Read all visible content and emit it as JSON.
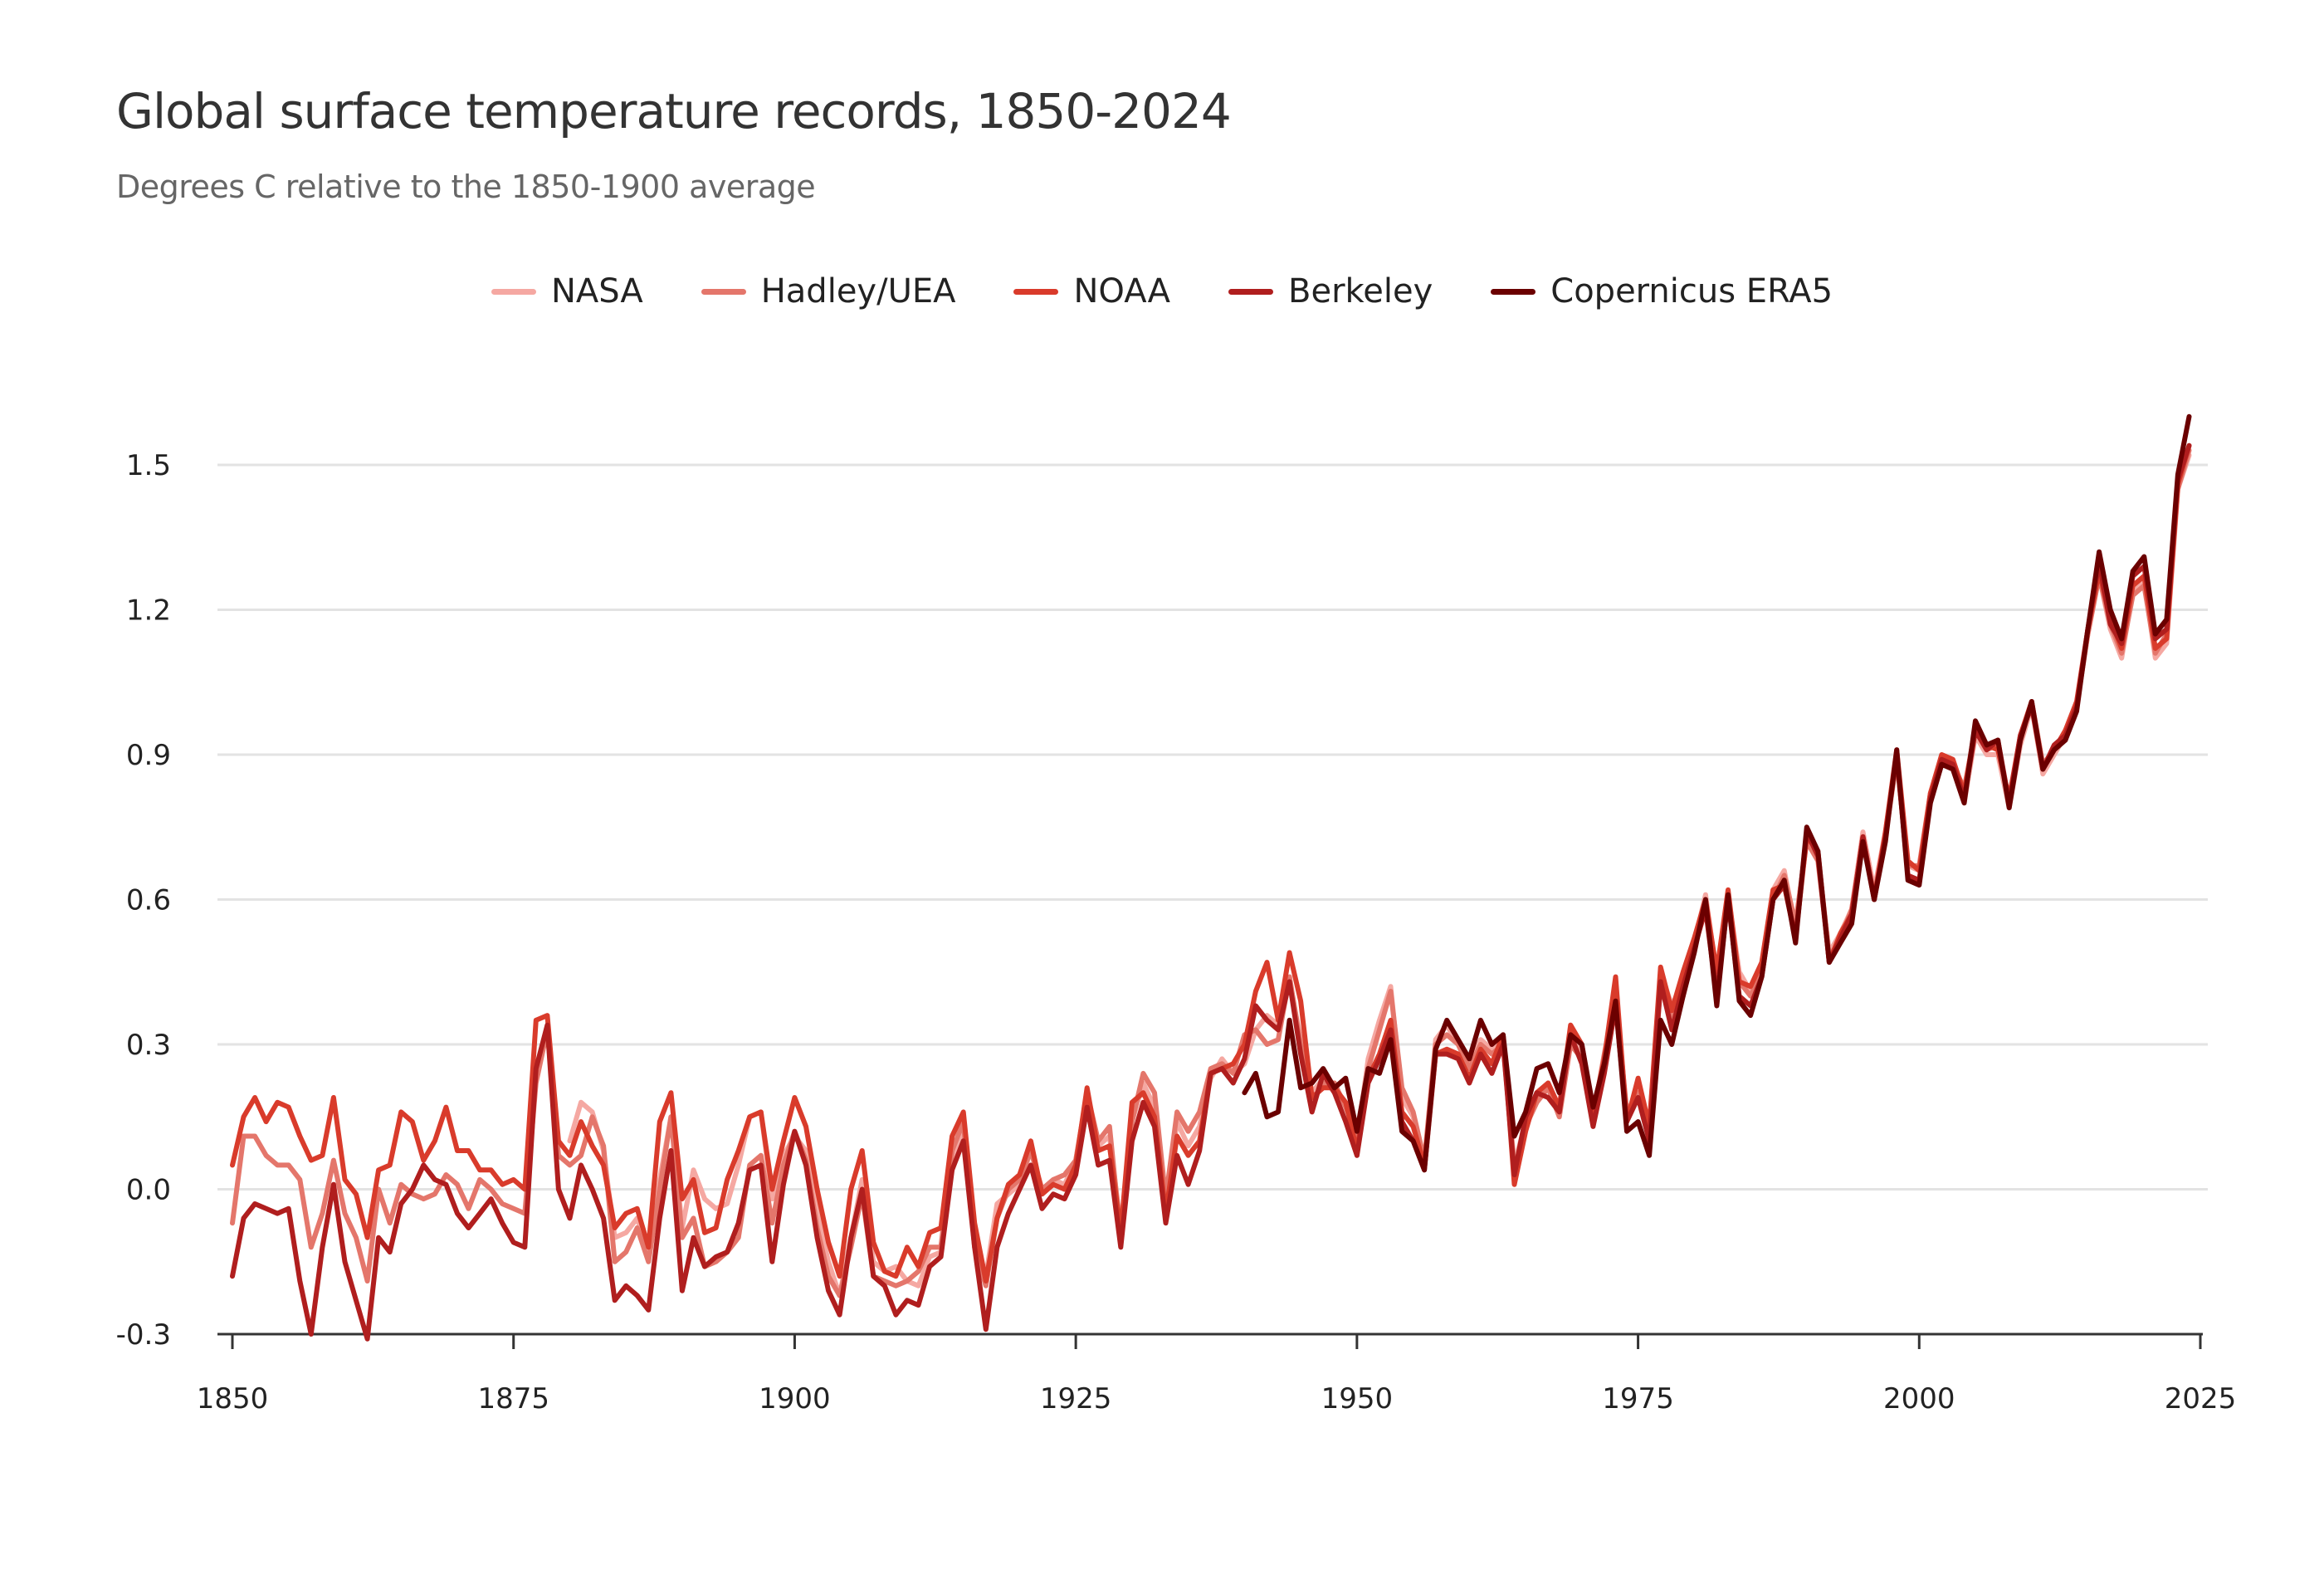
{
  "chart_data": {
    "type": "line",
    "title": "Global surface temperature records, 1850-2024",
    "subtitle": "Degrees C relative to the 1850-1900 average",
    "xlabel": "",
    "ylabel": "",
    "xlim": [
      1850,
      2025
    ],
    "ylim": [
      -0.3,
      1.5
    ],
    "x_ticks": [
      "1850",
      "1875",
      "1900",
      "1925",
      "1950",
      "1975",
      "2000",
      "2025"
    ],
    "y_ticks": [
      "-0.3",
      "0.0",
      "0.3",
      "0.6",
      "0.9",
      "1.2",
      "1.5"
    ],
    "grid": true,
    "legend_position": "top-center",
    "series": [
      {
        "name": "NASA",
        "color": "#f5a8a2",
        "start": 1880,
        "values": [
          0.1,
          0.18,
          0.16,
          0.08,
          -0.1,
          -0.09,
          -0.06,
          -0.13,
          0.02,
          0.15,
          -0.08,
          0.04,
          -0.02,
          -0.04,
          -0.03,
          0.05,
          0.15,
          0.16,
          -0.02,
          0.07,
          0.11,
          0.08,
          -0.05,
          -0.15,
          -0.22,
          -0.1,
          0.02,
          -0.15,
          -0.17,
          -0.16,
          -0.19,
          -0.2,
          -0.14,
          -0.13,
          0.06,
          0.12,
          -0.1,
          -0.18,
          -0.03,
          -0.01,
          0.01,
          0.08,
          0.0,
          0.02,
          0.01,
          0.06,
          0.19,
          0.09,
          0.11,
          -0.08,
          0.14,
          0.22,
          0.17,
          -0.03,
          0.14,
          0.09,
          0.13,
          0.23,
          0.27,
          0.24,
          0.26,
          0.33,
          0.36,
          0.34,
          0.43,
          0.31,
          0.2,
          0.23,
          0.2,
          0.18,
          0.1,
          0.27,
          0.35,
          0.42,
          0.19,
          0.15,
          0.05,
          0.31,
          0.34,
          0.3,
          0.26,
          0.31,
          0.29,
          0.31,
          0.05,
          0.14,
          0.2,
          0.22,
          0.16,
          0.32,
          0.28,
          0.17,
          0.26,
          0.41,
          0.15,
          0.21,
          0.13,
          0.45,
          0.38,
          0.43,
          0.51,
          0.61,
          0.44,
          0.61,
          0.45,
          0.41,
          0.46,
          0.62,
          0.66,
          0.54,
          0.73,
          0.69,
          0.49,
          0.53,
          0.58,
          0.74,
          0.62,
          0.74,
          0.9,
          0.67,
          0.66,
          0.81,
          0.88,
          0.87,
          0.8,
          0.94,
          0.9,
          0.9,
          0.79,
          0.92,
          1.0,
          0.86,
          0.9,
          0.94,
          1.0,
          1.15,
          1.27,
          1.16,
          1.1,
          1.24,
          1.26,
          1.1,
          1.13,
          1.45,
          1.52
        ]
      },
      {
        "name": "Hadley/UEA",
        "color": "#e4766b",
        "start": 1850,
        "values": [
          -0.07,
          0.11,
          0.11,
          0.07,
          0.05,
          0.05,
          0.02,
          -0.12,
          -0.05,
          0.06,
          -0.05,
          -0.1,
          -0.19,
          0.0,
          -0.07,
          0.01,
          -0.01,
          -0.02,
          -0.01,
          0.03,
          0.01,
          -0.04,
          0.02,
          0.0,
          -0.03,
          -0.04,
          -0.05,
          0.22,
          0.33,
          0.07,
          0.05,
          0.07,
          0.15,
          0.09,
          -0.15,
          -0.13,
          -0.08,
          -0.15,
          0.0,
          0.15,
          -0.1,
          -0.06,
          -0.16,
          -0.15,
          -0.13,
          -0.1,
          0.05,
          0.07,
          -0.07,
          0.05,
          0.12,
          0.06,
          -0.08,
          -0.18,
          -0.22,
          -0.12,
          -0.01,
          -0.18,
          -0.19,
          -0.2,
          -0.19,
          -0.17,
          -0.12,
          -0.12,
          0.08,
          0.14,
          -0.12,
          -0.2,
          -0.06,
          0.0,
          0.02,
          0.08,
          0.0,
          0.02,
          0.03,
          0.06,
          0.2,
          0.1,
          0.13,
          -0.1,
          0.14,
          0.24,
          0.2,
          -0.02,
          0.16,
          0.12,
          0.16,
          0.25,
          0.26,
          0.24,
          0.32,
          0.33,
          0.3,
          0.31,
          0.44,
          0.3,
          0.18,
          0.22,
          0.22,
          0.17,
          0.11,
          0.25,
          0.33,
          0.41,
          0.21,
          0.16,
          0.06,
          0.3,
          0.32,
          0.3,
          0.25,
          0.3,
          0.28,
          0.3,
          0.04,
          0.13,
          0.18,
          0.21,
          0.15,
          0.3,
          0.27,
          0.15,
          0.28,
          0.4,
          0.16,
          0.2,
          0.12,
          0.42,
          0.35,
          0.4,
          0.5,
          0.58,
          0.42,
          0.6,
          0.43,
          0.4,
          0.45,
          0.6,
          0.65,
          0.55,
          0.72,
          0.68,
          0.48,
          0.52,
          0.58,
          0.72,
          0.61,
          0.73,
          0.89,
          0.67,
          0.67,
          0.82,
          0.89,
          0.88,
          0.83,
          0.95,
          0.91,
          0.92,
          0.8,
          0.93,
          1.01,
          0.88,
          0.91,
          0.95,
          1.0,
          1.15,
          1.27,
          1.17,
          1.11,
          1.23,
          1.25,
          1.11,
          1.15,
          1.45,
          1.53
        ]
      },
      {
        "name": "NOAA",
        "color": "#d93b2b",
        "start": 1850,
        "values": [
          0.05,
          0.15,
          0.19,
          0.14,
          0.18,
          0.17,
          0.11,
          0.06,
          0.07,
          0.19,
          0.02,
          -0.01,
          -0.1,
          0.04,
          0.05,
          0.16,
          0.14,
          0.06,
          0.1,
          0.17,
          0.08,
          0.08,
          0.04,
          0.04,
          0.01,
          0.02,
          0.0,
          0.35,
          0.36,
          0.1,
          0.07,
          0.14,
          0.09,
          0.05,
          -0.08,
          -0.05,
          -0.04,
          -0.12,
          0.14,
          0.2,
          -0.02,
          0.02,
          -0.09,
          -0.08,
          0.02,
          0.08,
          0.15,
          0.16,
          0.0,
          0.1,
          0.19,
          0.13,
          0.0,
          -0.11,
          -0.18,
          0.0,
          0.08,
          -0.11,
          -0.17,
          -0.18,
          -0.12,
          -0.16,
          -0.09,
          -0.08,
          0.11,
          0.16,
          -0.07,
          -0.19,
          -0.06,
          0.01,
          0.03,
          0.1,
          -0.01,
          0.01,
          0.0,
          0.05,
          0.21,
          0.08,
          0.09,
          -0.09,
          0.18,
          0.2,
          0.15,
          -0.05,
          0.11,
          0.07,
          0.1,
          0.24,
          0.25,
          0.26,
          0.3,
          0.41,
          0.47,
          0.35,
          0.49,
          0.39,
          0.19,
          0.21,
          0.21,
          0.18,
          0.08,
          0.23,
          0.28,
          0.35,
          0.16,
          0.13,
          0.05,
          0.28,
          0.29,
          0.28,
          0.23,
          0.29,
          0.26,
          0.32,
          0.01,
          0.12,
          0.2,
          0.22,
          0.17,
          0.34,
          0.3,
          0.16,
          0.27,
          0.44,
          0.14,
          0.23,
          0.13,
          0.46,
          0.37,
          0.45,
          0.52,
          0.6,
          0.45,
          0.62,
          0.43,
          0.42,
          0.47,
          0.62,
          0.63,
          0.52,
          0.73,
          0.7,
          0.47,
          0.53,
          0.57,
          0.73,
          0.6,
          0.74,
          0.91,
          0.68,
          0.66,
          0.82,
          0.9,
          0.89,
          0.82,
          0.96,
          0.92,
          0.91,
          0.81,
          0.94,
          1.01,
          0.87,
          0.91,
          0.95,
          1.01,
          1.16,
          1.28,
          1.18,
          1.12,
          1.25,
          1.27,
          1.12,
          1.14,
          1.46,
          1.54
        ]
      },
      {
        "name": "Berkeley",
        "color": "#b01e1e",
        "start": 1850,
        "values": [
          -0.18,
          -0.06,
          -0.03,
          -0.04,
          -0.05,
          -0.04,
          -0.19,
          -0.3,
          -0.12,
          0.01,
          -0.15,
          -0.23,
          -0.31,
          -0.1,
          -0.13,
          -0.03,
          0.0,
          0.05,
          0.02,
          0.01,
          -0.05,
          -0.08,
          -0.05,
          -0.02,
          -0.07,
          -0.11,
          -0.12,
          0.25,
          0.34,
          0.0,
          -0.06,
          0.05,
          0.0,
          -0.06,
          -0.23,
          -0.2,
          -0.22,
          -0.25,
          -0.06,
          0.08,
          -0.21,
          -0.1,
          -0.16,
          -0.14,
          -0.13,
          -0.07,
          0.04,
          0.05,
          -0.15,
          0.01,
          0.12,
          0.05,
          -0.1,
          -0.21,
          -0.26,
          -0.1,
          0.0,
          -0.18,
          -0.2,
          -0.26,
          -0.23,
          -0.24,
          -0.16,
          -0.14,
          0.04,
          0.1,
          -0.12,
          -0.29,
          -0.12,
          -0.05,
          0.0,
          0.05,
          -0.04,
          -0.01,
          -0.02,
          0.03,
          0.17,
          0.05,
          0.06,
          -0.12,
          0.1,
          0.18,
          0.13,
          -0.07,
          0.07,
          0.01,
          0.08,
          0.24,
          0.25,
          0.22,
          0.27,
          0.38,
          0.35,
          0.33,
          0.43,
          0.28,
          0.16,
          0.24,
          0.2,
          0.14,
          0.07,
          0.22,
          0.27,
          0.33,
          0.14,
          0.1,
          0.04,
          0.28,
          0.28,
          0.27,
          0.22,
          0.28,
          0.24,
          0.3,
          0.03,
          0.15,
          0.2,
          0.19,
          0.16,
          0.32,
          0.26,
          0.13,
          0.24,
          0.38,
          0.14,
          0.19,
          0.1,
          0.43,
          0.33,
          0.42,
          0.5,
          0.58,
          0.4,
          0.6,
          0.4,
          0.38,
          0.44,
          0.6,
          0.63,
          0.52,
          0.74,
          0.69,
          0.47,
          0.52,
          0.57,
          0.73,
          0.6,
          0.73,
          0.9,
          0.65,
          0.64,
          0.81,
          0.89,
          0.88,
          0.81,
          0.95,
          0.91,
          0.93,
          0.8,
          0.94,
          1.0,
          0.87,
          0.92,
          0.94,
          1.0,
          1.16,
          1.3,
          1.17,
          1.13,
          1.27,
          1.29,
          1.14,
          1.16,
          1.47,
          1.54
        ]
      },
      {
        "name": "Copernicus ERA5",
        "color": "#6b0000",
        "start": 1940,
        "values": [
          0.2,
          0.24,
          0.15,
          0.16,
          0.35,
          0.21,
          0.22,
          0.25,
          0.21,
          0.23,
          0.12,
          0.25,
          0.24,
          0.31,
          0.12,
          0.1,
          0.04,
          0.29,
          0.35,
          0.31,
          0.27,
          0.35,
          0.3,
          0.32,
          0.11,
          0.16,
          0.25,
          0.26,
          0.2,
          0.32,
          0.3,
          0.17,
          0.26,
          0.39,
          0.12,
          0.14,
          0.07,
          0.35,
          0.3,
          0.4,
          0.49,
          0.6,
          0.38,
          0.61,
          0.39,
          0.36,
          0.44,
          0.6,
          0.64,
          0.51,
          0.75,
          0.7,
          0.47,
          0.51,
          0.55,
          0.72,
          0.6,
          0.72,
          0.91,
          0.64,
          0.63,
          0.8,
          0.88,
          0.87,
          0.8,
          0.97,
          0.92,
          0.93,
          0.79,
          0.93,
          1.01,
          0.87,
          0.91,
          0.93,
          0.99,
          1.16,
          1.32,
          1.2,
          1.14,
          1.28,
          1.31,
          1.15,
          1.18,
          1.48,
          1.6
        ]
      }
    ]
  }
}
